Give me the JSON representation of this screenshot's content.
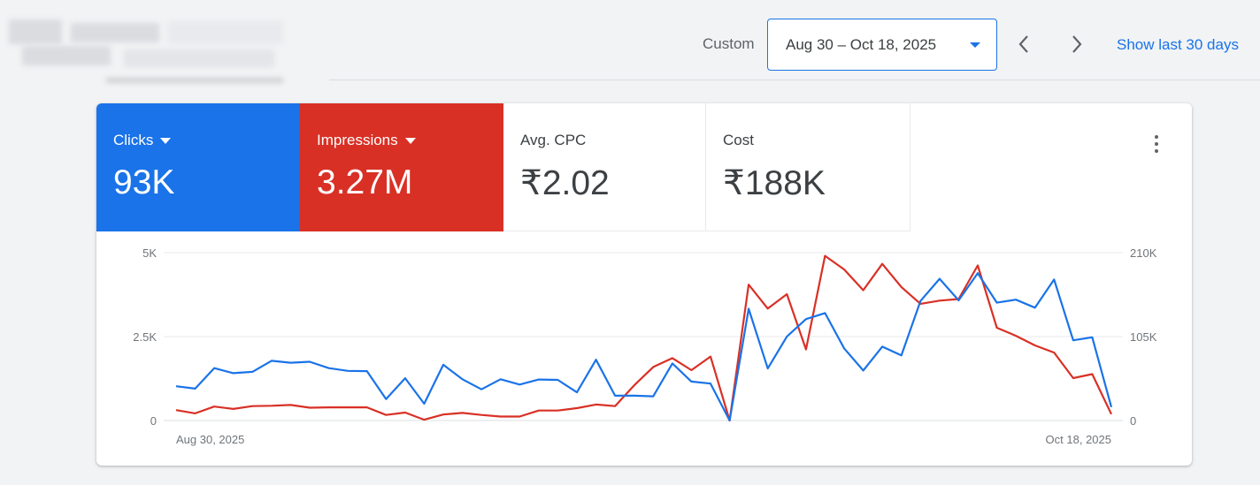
{
  "header": {
    "date_mode_label": "Custom",
    "date_range": "Aug 30 – Oct 18, 2025",
    "show_last_label": "Show last 30 days",
    "icons": {
      "prev": "chevron-left-icon",
      "next": "chevron-right-icon",
      "dropdown": "caret-down-icon"
    }
  },
  "metrics": [
    {
      "label": "Clicks",
      "value": "93K",
      "color": "#1a73e8",
      "selected": true
    },
    {
      "label": "Impressions",
      "value": "3.27M",
      "color": "#d93025",
      "selected": true
    },
    {
      "label": "Avg. CPC",
      "value": "₹2.02",
      "selected": false
    },
    {
      "label": "Cost",
      "value": "₹188K",
      "selected": false
    }
  ],
  "chart_data": {
    "type": "line",
    "x_labels": {
      "start": "Aug 30, 2025",
      "end": "Oct 18, 2025"
    },
    "x_range": [
      "2025-08-30",
      "2025-10-18"
    ],
    "y_left": {
      "ticks": [
        "0",
        "2.5K",
        "5K"
      ],
      "values": [
        0,
        2500,
        5000
      ],
      "range": [
        0,
        5000
      ]
    },
    "y_right": {
      "ticks": [
        "0",
        "105K",
        "210K"
      ],
      "values": [
        0,
        105000,
        210000
      ],
      "range": [
        0,
        210000
      ]
    },
    "grid": true,
    "series": [
      {
        "name": "Clicks",
        "axis": "left",
        "color": "#1a73e8",
        "values": [
          1020,
          950,
          1560,
          1410,
          1450,
          1780,
          1720,
          1750,
          1560,
          1480,
          1470,
          640,
          1260,
          500,
          1660,
          1230,
          930,
          1230,
          1070,
          1220,
          1210,
          840,
          1810,
          740,
          740,
          720,
          1700,
          1160,
          1100,
          0,
          3330,
          1550,
          2500,
          3020,
          3200,
          2150,
          1490,
          2200,
          1940,
          3560,
          4220,
          3580,
          4390,
          3510,
          3600,
          3360,
          4200,
          2390,
          2480,
          400
        ],
        "color_hex": "#1a73e8"
      },
      {
        "name": "Impressions",
        "axis": "right",
        "color": "#d93025",
        "values": [
          13000,
          9000,
          17500,
          14500,
          18000,
          18500,
          19500,
          16000,
          16500,
          16500,
          16500,
          7000,
          10000,
          1000,
          7500,
          9500,
          7000,
          5000,
          5000,
          12500,
          12500,
          15500,
          20000,
          18000,
          44000,
          67000,
          78000,
          63000,
          80000,
          0,
          170000,
          140000,
          158000,
          89000,
          206000,
          189000,
          163000,
          196000,
          167000,
          146000,
          150000,
          152000,
          194000,
          116000,
          106000,
          94000,
          85000,
          53000,
          58000,
          8000
        ]
      }
    ]
  }
}
